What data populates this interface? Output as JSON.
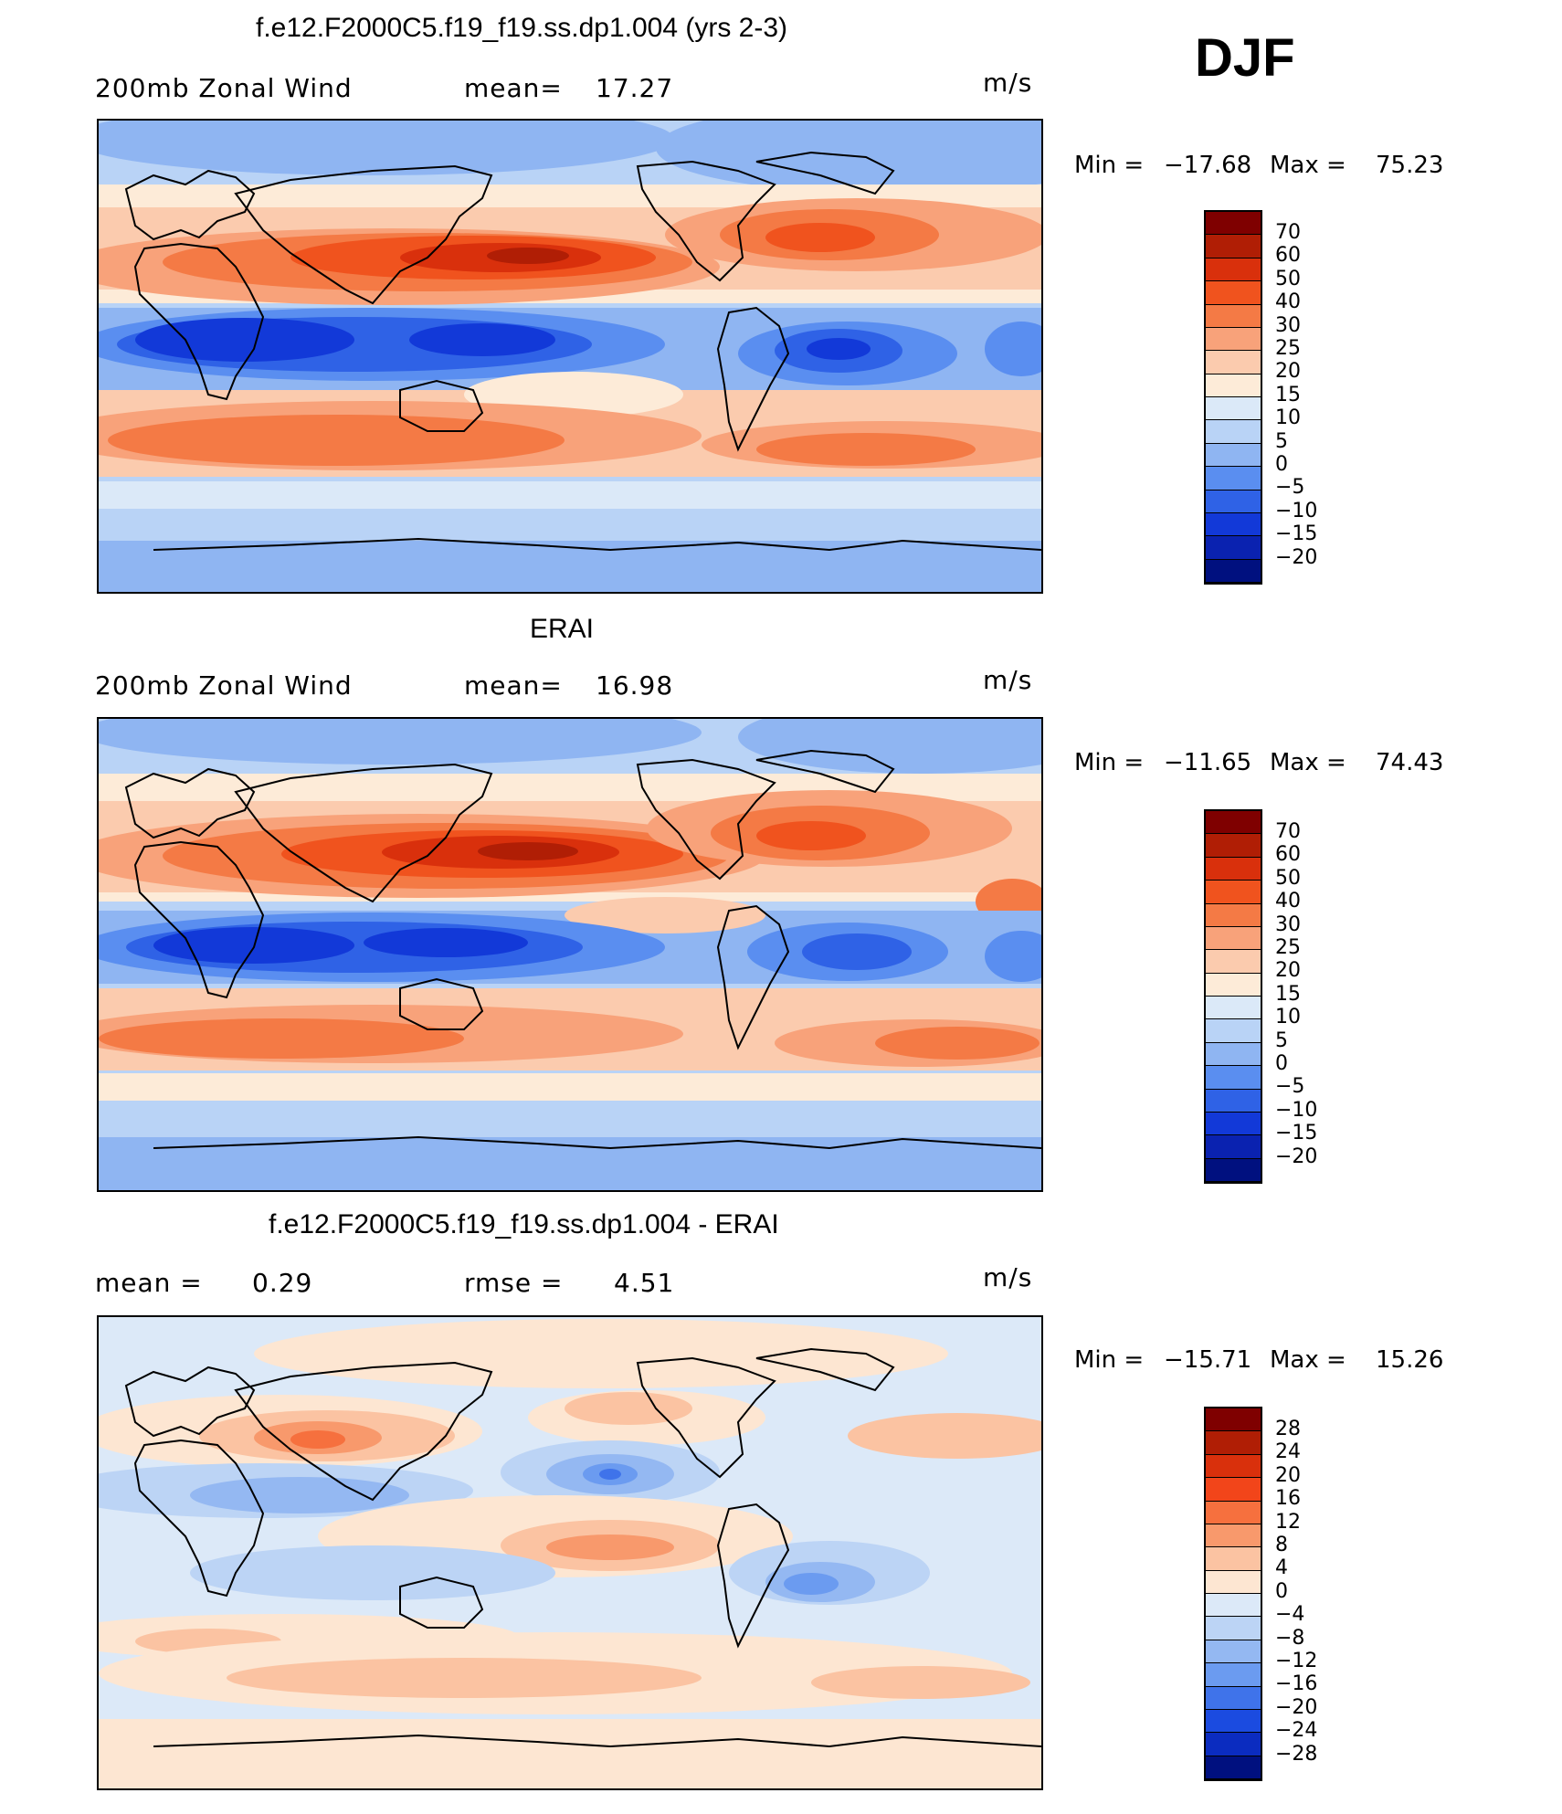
{
  "season": "DJF",
  "panels": [
    {
      "title": "f.e12.F2000C5.f19_f19.ss.dp1.004 (yrs 2-3)",
      "left_label": "200mb Zonal Wind",
      "mid_label": "mean=",
      "mid_value": "17.27",
      "units": "m/s",
      "min_label": "Min  =",
      "min_value": "−17.68",
      "max_label": "Max  =",
      "max_value": "75.23",
      "colorbar_labels": [
        "70",
        "60",
        "50",
        "40",
        "30",
        "25",
        "20",
        "15",
        "10",
        "5",
        "0",
        "−5",
        "−10",
        "−15",
        "−20"
      ]
    },
    {
      "title": "ERAI",
      "left_label": "200mb Zonal Wind",
      "mid_label": "mean=",
      "mid_value": "16.98",
      "units": "m/s",
      "min_label": "Min  =",
      "min_value": "−11.65",
      "max_label": "Max  =",
      "max_value": "74.43",
      "colorbar_labels": [
        "70",
        "60",
        "50",
        "40",
        "30",
        "25",
        "20",
        "15",
        "10",
        "5",
        "0",
        "−5",
        "−10",
        "−15",
        "−20"
      ]
    },
    {
      "title": "f.e12.F2000C5.f19_f19.ss.dp1.004 - ERAI",
      "left_label": "mean =",
      "left_value": "0.29",
      "mid_label": "rmse =",
      "mid_value": "4.51",
      "units": "m/s",
      "min_label": "Min  =",
      "min_value": "−15.71",
      "max_label": "Max  =",
      "max_value": "15.26",
      "colorbar_labels": [
        "28",
        "24",
        "20",
        "16",
        "12",
        "8",
        "4",
        "0",
        "−4",
        "−8",
        "−12",
        "−16",
        "−20",
        "−24",
        "−28"
      ]
    }
  ],
  "colors": {
    "abs_scale": [
      "#7f0000",
      "#b01e05",
      "#d9300c",
      "#f0531e",
      "#f47a45",
      "#f8a27a",
      "#fbcbae",
      "#fdebd8",
      "#dbe9f8",
      "#b9d3f6",
      "#8fb5f2",
      "#5a8ef0",
      "#2f62e6",
      "#1239d8",
      "#0a22b0",
      "#00107f"
    ],
    "diff_scale": [
      "#7f0000",
      "#b01e05",
      "#d9300c",
      "#f2451a",
      "#f6703e",
      "#f8996c",
      "#fbc3a2",
      "#fde6d2",
      "#dce9f8",
      "#bcd4f5",
      "#94b8f2",
      "#6b9bf0",
      "#3f73ea",
      "#1b4be0",
      "#0b2cc0",
      "#00107f"
    ]
  }
}
